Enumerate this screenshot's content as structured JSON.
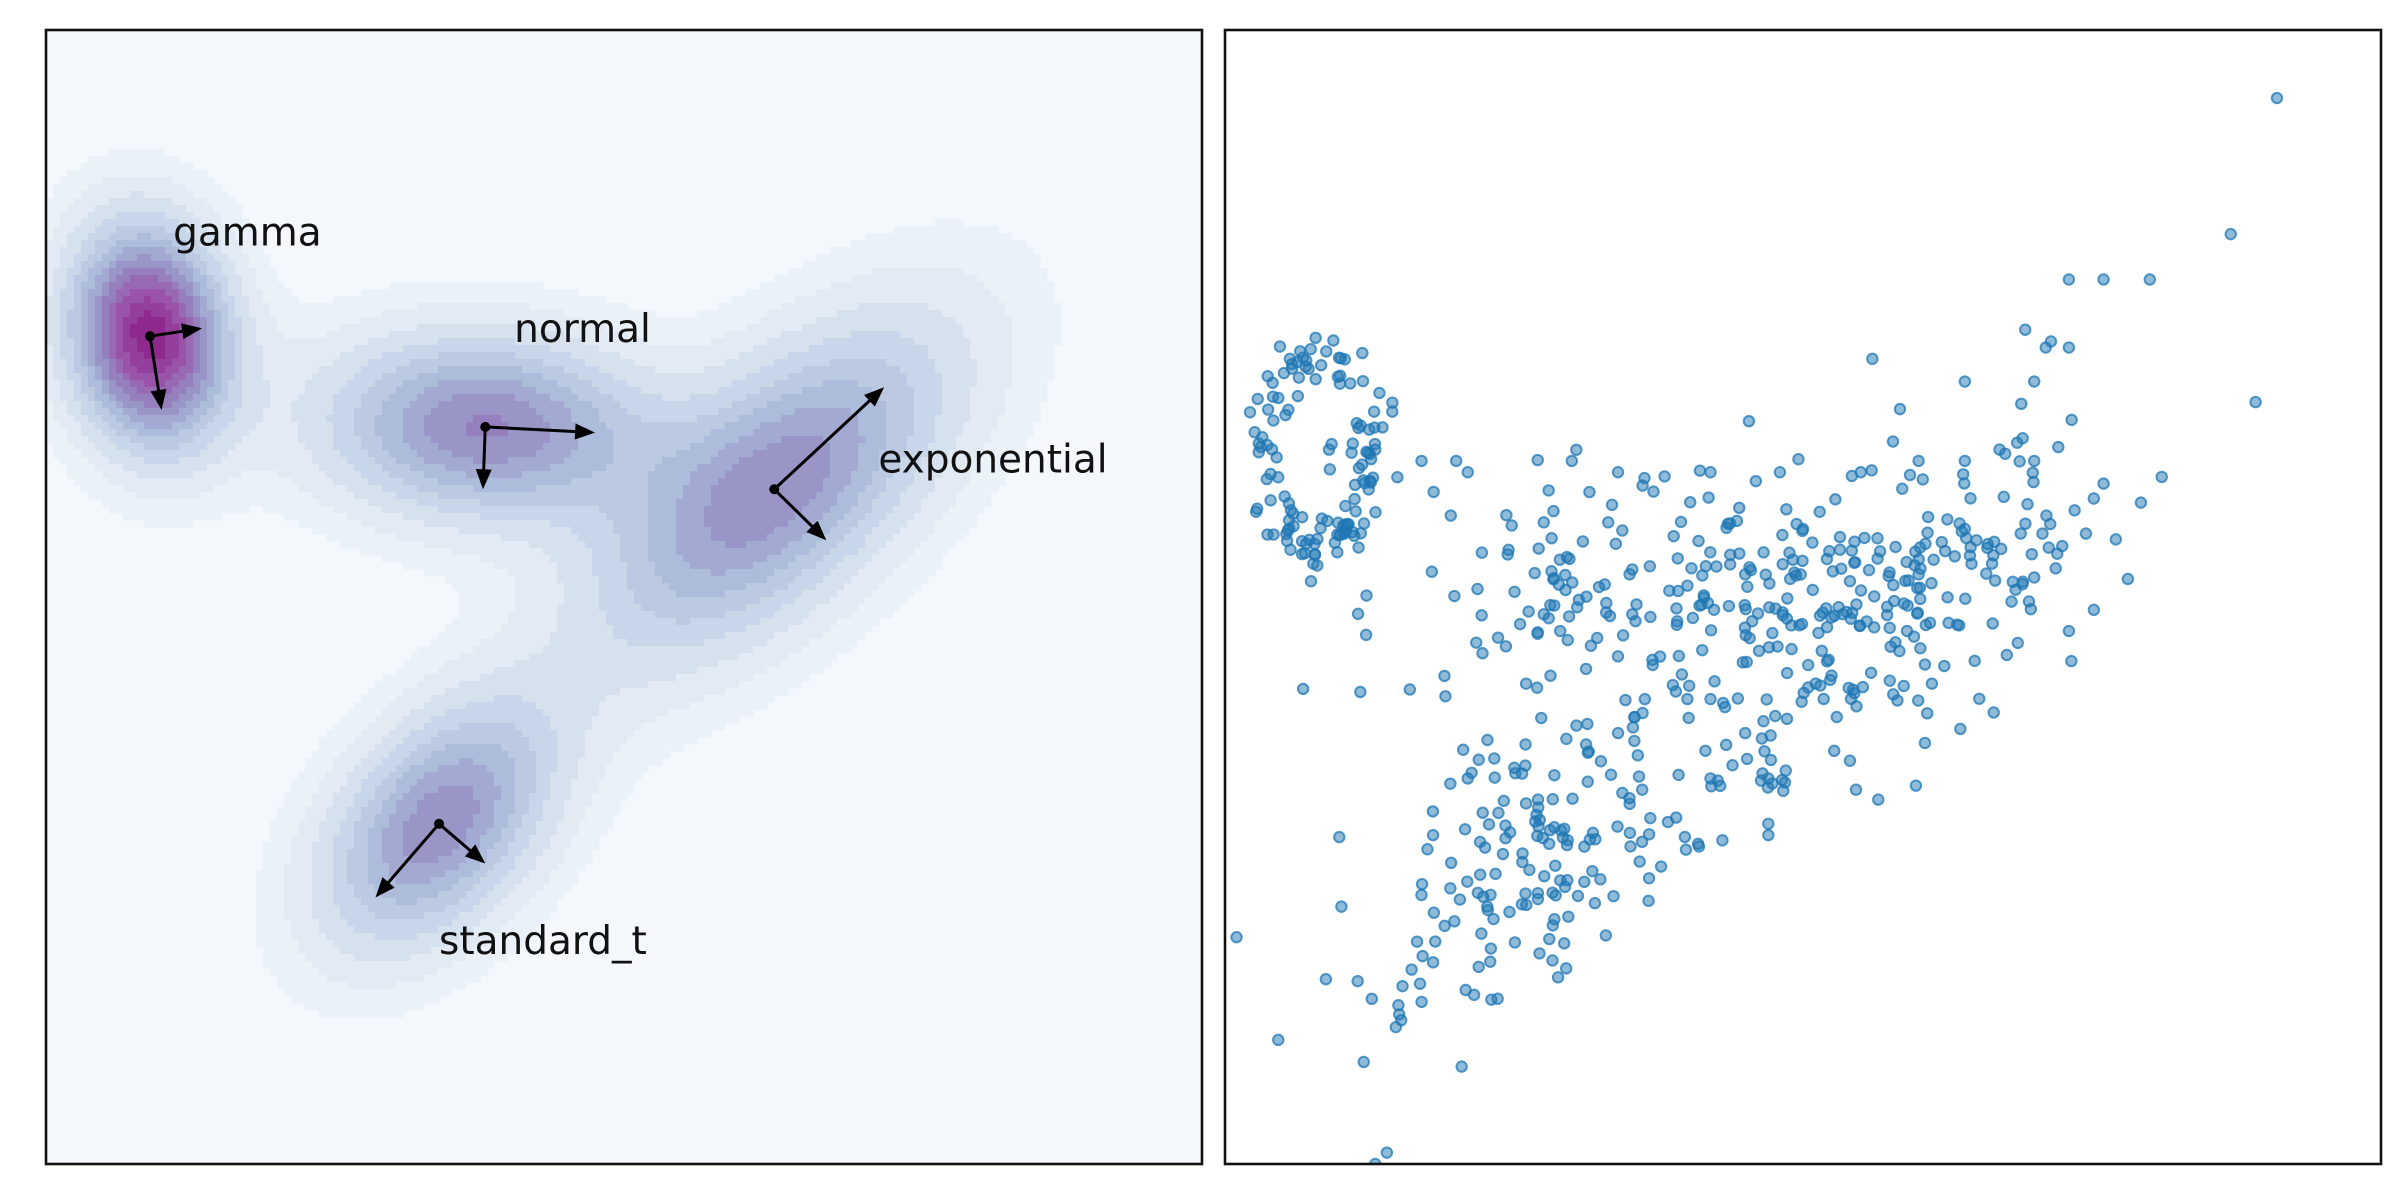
{
  "figure": {
    "panels": [
      {
        "id": "left",
        "type": "density_contour",
        "background": "#f4f8fc",
        "colormap": [
          "#f4f8fc",
          "#e1e9f3",
          "#c4d3e7",
          "#a7b5d7",
          "#9487c0",
          "#9a58ac",
          "#8e2a8e"
        ]
      },
      {
        "id": "right",
        "type": "scatter",
        "background": "#ffffff",
        "point_color": "#1f77b4"
      }
    ]
  },
  "chart_data": [
    {
      "type": "heatmap",
      "subtype": "kde_contour",
      "title": "",
      "xlabel": "",
      "ylabel": "",
      "ticks_visible": false,
      "xlim": [
        -5,
        5
      ],
      "ylim": [
        -5,
        5
      ],
      "components": [
        {
          "name": "gamma",
          "label": "gamma",
          "center": [
            -4.1,
            2.3
          ],
          "axes": [
            [
              0.45,
              0.07
            ],
            [
              0.1,
              -0.65
            ]
          ],
          "weight": 1.0
        },
        {
          "name": "normal",
          "label": "normal",
          "center": [
            -1.2,
            1.5
          ],
          "axes": [
            [
              0.95,
              -0.05
            ],
            [
              -0.02,
              -0.55
            ]
          ],
          "weight": 0.65
        },
        {
          "name": "exponential",
          "label": "exponential",
          "center": [
            1.3,
            0.95
          ],
          "axes": [
            [
              0.95,
              0.9
            ],
            [
              0.45,
              -0.45
            ]
          ],
          "weight": 0.62
        },
        {
          "name": "standard_t",
          "label": "standard_t",
          "center": [
            -1.6,
            -2.0
          ],
          "axes": [
            [
              -0.55,
              -0.65
            ],
            [
              0.4,
              -0.35
            ]
          ],
          "weight": 0.62
        }
      ]
    },
    {
      "type": "scatter",
      "title": "",
      "xlabel": "",
      "ylabel": "",
      "ticks_visible": false,
      "xlim": [
        -5,
        5
      ],
      "ylim": [
        -5,
        5
      ],
      "marker_alpha": 0.5,
      "points": [
        [
          -4.9,
          -3.0
        ],
        [
          -3.7,
          -5.0
        ],
        [
          -3.6,
          -4.9
        ],
        [
          4.1,
          4.4
        ],
        [
          3.7,
          3.2
        ],
        [
          3.0,
          2.8
        ],
        [
          2.6,
          2.8
        ],
        [
          2.3,
          2.8
        ],
        [
          2.3,
          2.2
        ],
        [
          2.0,
          1.9
        ],
        [
          2.1,
          2.2
        ],
        [
          2.6,
          1.0
        ],
        [
          2.3,
          -0.3
        ],
        [
          1.4,
          1.9
        ],
        [
          0.6,
          2.1
        ],
        [
          1.4,
          0.6
        ],
        [
          0.8,
          -0.4
        ],
        [
          -1.8,
          -2.7
        ],
        [
          -3.8,
          -4.1
        ],
        [
          -3.5,
          -3.6
        ],
        [
          -4.1,
          1.3
        ],
        [
          -3.7,
          1.3
        ],
        [
          -3.3,
          1.2
        ],
        [
          -3.0,
          1.2
        ],
        [
          -2.9,
          1.1
        ],
        [
          -2.0,
          1.2
        ],
        [
          -1.6,
          1.1
        ],
        [
          -0.8,
          1.1
        ],
        [
          -0.2,
          1.1
        ],
        [
          0.5,
          1.1
        ],
        [
          1.0,
          1.2
        ],
        [
          1.4,
          1.2
        ],
        [
          1.7,
          1.3
        ],
        [
          1.9,
          1.4
        ],
        [
          2.0,
          1.2
        ],
        [
          1.5,
          0.5
        ],
        [
          1.0,
          0.2
        ],
        [
          0.0,
          0.6
        ],
        [
          -0.5,
          0.2
        ],
        [
          -1.0,
          0.1
        ],
        [
          -1.5,
          0.2
        ],
        [
          -2.1,
          -0.3
        ],
        [
          -2.3,
          -0.8
        ],
        [
          -1.3,
          -0.6
        ],
        [
          -0.8,
          -0.9
        ],
        [
          -0.5,
          -1.2
        ],
        [
          -0.3,
          -1.6
        ],
        [
          -1.6,
          -1.2
        ],
        [
          -2.4,
          -1.3
        ],
        [
          -2.9,
          -1.6
        ],
        [
          -3.2,
          -2.1
        ],
        [
          -3.1,
          -2.9
        ],
        [
          -2.7,
          -3.1
        ],
        [
          -1.0,
          -0.9
        ],
        [
          -0.8,
          -1.6
        ],
        [
          -0.3,
          -2.1
        ],
        [
          -0.9,
          -2.2
        ],
        [
          -0.3,
          -2.0
        ],
        [
          0.9,
          -0.3
        ],
        [
          0.2,
          -0.1
        ]
      ],
      "clusters": [
        {
          "kind": "ring",
          "center": [
            -4.2,
            1.3
          ],
          "radius": [
            0.45,
            0.85
          ],
          "count": 130,
          "spread": 0.12
        },
        {
          "kind": "blob",
          "center": [
            -2.3,
            -2.3
          ],
          "axes": [
            [
              0.55,
              0.55
            ],
            [
              0.35,
              -0.35
            ]
          ],
          "count": 150
        },
        {
          "kind": "blob",
          "center": [
            -1.2,
            0.1
          ],
          "axes": [
            [
              1.4,
              0.15
            ],
            [
              0.1,
              -0.55
            ]
          ],
          "count": 200
        },
        {
          "kind": "blob",
          "center": [
            1.0,
            0.1
          ],
          "axes": [
            [
              0.9,
              0.7
            ],
            [
              0.35,
              -0.35
            ]
          ],
          "count": 140
        },
        {
          "kind": "blob",
          "center": [
            0.4,
            -0.9
          ],
          "axes": [
            [
              1.2,
              0.7
            ],
            [
              0.2,
              -0.3
            ]
          ],
          "count": 60
        }
      ]
    }
  ]
}
